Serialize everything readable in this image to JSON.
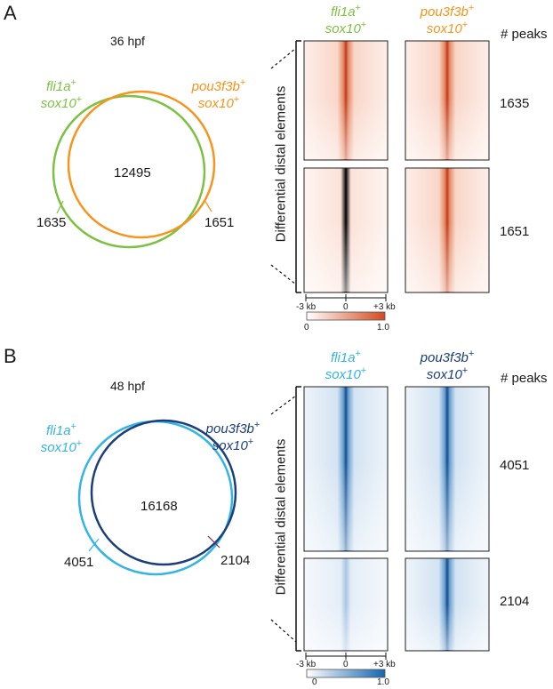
{
  "panels": [
    {
      "letter": "A",
      "timepoint": "36 hpf",
      "left_group": {
        "gene": "fli1a",
        "sup1": "+",
        "line2": "sox10",
        "sup2": "+",
        "color": "#7dc142"
      },
      "right_group": {
        "gene": "pou3f3b",
        "sup1": "+",
        "line2": "sox10",
        "sup2": "+",
        "color": "#f7941d"
      },
      "venn": {
        "overlap": "12495",
        "left_only": "1635",
        "right_only": "1651"
      },
      "peaks_header": "# peaks",
      "row_counts": [
        "1635",
        "1651"
      ],
      "axis_label": "Differential distal elements",
      "scale": {
        "left": "-3 kb",
        "center": "0",
        "right": "+3 kb",
        "min": "0",
        "max": "1.0",
        "color": "#d44a1e"
      }
    },
    {
      "letter": "B",
      "timepoint": "48 hpf",
      "left_group": {
        "gene": "fli1a",
        "sup1": "+",
        "line2": "sox10",
        "sup2": "+",
        "color": "#34b4e4"
      },
      "right_group": {
        "gene": "pou3f3b",
        "sup1": "+",
        "line2": "sox10",
        "sup2": "+",
        "color": "#1b3f7a"
      },
      "venn": {
        "overlap": "16168",
        "left_only": "4051",
        "right_only": "2104"
      },
      "peaks_header": "# peaks",
      "row_counts": [
        "4051",
        "2104"
      ],
      "axis_label": "Differential distal elements",
      "scale": {
        "left": "-3 kb",
        "center": "0",
        "right": "+3 kb",
        "min": "0",
        "max": "1.0",
        "color": "#1565b0"
      }
    }
  ]
}
